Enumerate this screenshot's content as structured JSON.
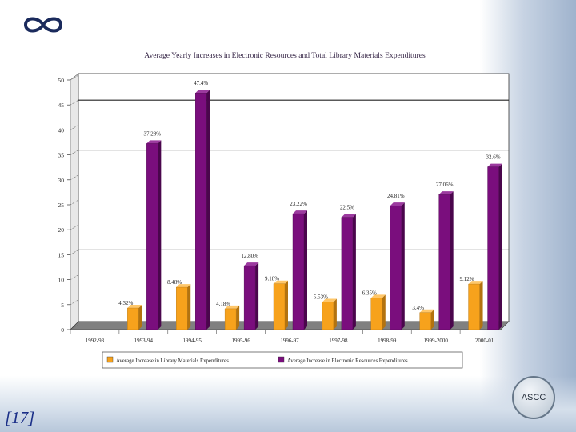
{
  "slide": {
    "number_label": "[17]",
    "badge_text": "ASCC"
  },
  "colors": {
    "library": "#F7A21C",
    "electronic": "#7A0E7D",
    "background": "#ffffff",
    "title": "#3a2a4a"
  },
  "chart_data": {
    "type": "bar",
    "title": "Average Yearly Increases in Electronic Resources and Total Library Materials Expenditures",
    "xlabel": "",
    "ylabel": "",
    "ylim": [
      0,
      50
    ],
    "yticks": [
      "0",
      "5",
      "10",
      "15",
      "20",
      "25",
      "30",
      "35",
      "40",
      "45",
      "50"
    ],
    "grid": "major gridlines at 15, 35, 45",
    "legend_position": "bottom",
    "categories": [
      "1992-93",
      "1993-94",
      "1994-95",
      "1995-96",
      "1996-97",
      "1997-98",
      "1998-99",
      "1999-2000",
      "2000-01"
    ],
    "series": [
      {
        "name": "Average Increase in Library Materials Expenditures",
        "values": [
          null,
          4.32,
          8.48,
          4.18,
          9.18,
          5.53,
          6.35,
          3.4,
          9.12
        ],
        "labels": [
          "",
          "4.32%",
          "8.48%",
          "4.18%",
          "9.18%",
          "5.53%",
          "6.35%",
          "3.4%",
          "9.12%"
        ]
      },
      {
        "name": "Average Increase in Electronic Resources Expenditures",
        "values": [
          null,
          37.28,
          47.4,
          12.8,
          23.22,
          22.5,
          24.81,
          27.06,
          32.6
        ],
        "labels": [
          "",
          "37.28%",
          "47.4%",
          "12.80%",
          "23.22%",
          "22.5%",
          "24.81%",
          "27.06%",
          "32.6%"
        ]
      }
    ]
  }
}
